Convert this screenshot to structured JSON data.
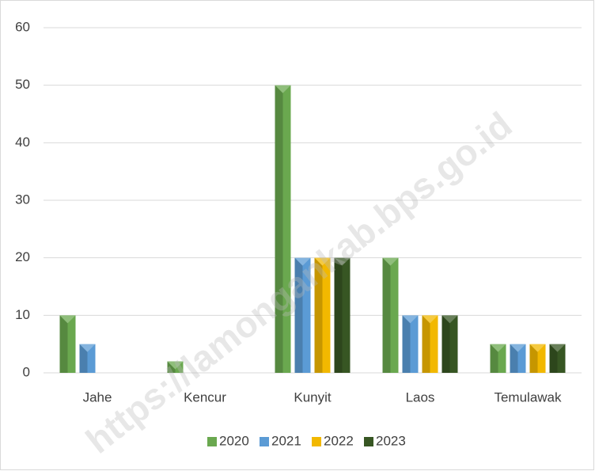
{
  "chart_data": {
    "type": "bar",
    "categories": [
      "Jahe",
      "Kencur",
      "Kunyit",
      "Laos",
      "Temulawak"
    ],
    "series": [
      {
        "name": "2020",
        "color": "#6aa84f",
        "values": [
          10,
          2,
          50,
          20,
          5
        ]
      },
      {
        "name": "2021",
        "color": "#5b9bd5",
        "values": [
          5,
          0,
          20,
          10,
          5
        ]
      },
      {
        "name": "2022",
        "color": "#f2b800",
        "values": [
          0,
          0,
          20,
          10,
          5
        ]
      },
      {
        "name": "2023",
        "color": "#375623",
        "values": [
          0,
          0,
          20,
          10,
          5
        ]
      }
    ],
    "ylim": [
      0,
      60
    ],
    "yticks": [
      0,
      10,
      20,
      30,
      40,
      50,
      60
    ],
    "grid": true,
    "legend": "bottom",
    "watermark": "https://lamongankab.bps.go.id"
  }
}
